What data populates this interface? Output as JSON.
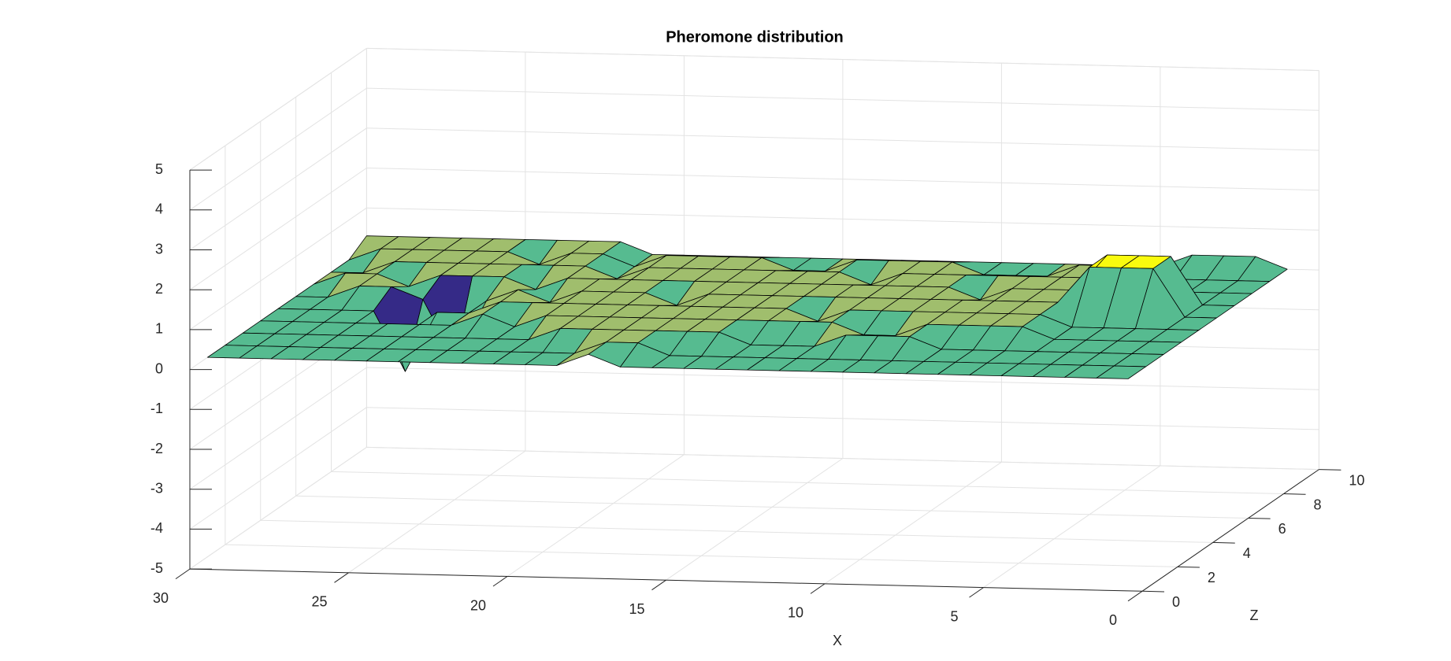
{
  "chart_data": {
    "type": "surface",
    "title": "Pheromone distribution",
    "xlabel": "X",
    "ylabel": "Z",
    "x": [
      1,
      2,
      3,
      4,
      5,
      6,
      7,
      8,
      9,
      10,
      11,
      12,
      13,
      14,
      15,
      16,
      17,
      18,
      19,
      20,
      21,
      22,
      23,
      24,
      25,
      26,
      27,
      28,
      29,
      30
    ],
    "y": [
      1,
      2,
      3,
      4,
      5,
      6,
      7,
      8,
      9,
      10
    ],
    "values": [
      [
        0,
        0,
        0,
        0,
        0,
        0,
        0,
        0,
        0,
        0,
        0,
        0,
        0,
        0,
        0,
        0,
        0,
        0.3,
        0,
        0,
        0,
        0,
        0,
        0,
        0,
        0,
        0,
        0,
        0,
        0
      ],
      [
        0,
        0,
        0,
        0,
        0,
        0,
        0,
        0,
        0,
        0,
        0,
        0,
        0,
        0,
        0,
        0,
        0.3,
        0.3,
        0,
        0,
        0,
        0,
        0,
        0,
        0,
        0,
        0,
        0,
        0,
        0
      ],
      [
        0,
        0,
        0,
        0,
        0,
        0,
        0,
        0,
        0.3,
        0.3,
        0.3,
        0,
        0,
        0,
        0.3,
        0.3,
        0.3,
        0.3,
        0.3,
        0.3,
        0,
        0,
        0,
        0,
        0,
        0,
        0,
        0,
        0,
        0
      ],
      [
        0,
        0,
        0,
        0,
        0,
        0.3,
        0.3,
        0.3,
        0.3,
        0,
        0,
        0.3,
        0.3,
        0.3,
        0.3,
        0.3,
        0.3,
        0.3,
        0.3,
        0.3,
        0.3,
        0,
        0.3,
        0,
        0,
        0,
        0,
        0,
        0,
        0
      ],
      [
        0,
        0,
        0,
        0,
        0,
        0.3,
        0.3,
        0.3,
        0.3,
        0.3,
        0.3,
        0.3,
        0,
        0.3,
        0.3,
        0.3,
        0.3,
        0.3,
        0.3,
        0.3,
        0.3,
        0.3,
        0.3,
        0,
        0,
        -1.5,
        0,
        0,
        0,
        0
      ],
      [
        0,
        0,
        1.2,
        1.2,
        1.2,
        0.3,
        0.3,
        0.3,
        0.3,
        0.3,
        0.3,
        0.3,
        0.3,
        0.3,
        0.3,
        0.3,
        0.3,
        0,
        0.3,
        0.3,
        0.3,
        0,
        0.3,
        0,
        -1.5,
        0,
        0.3,
        0.3,
        0,
        0
      ],
      [
        0,
        0,
        1.2,
        1.2,
        1.2,
        0.3,
        0.3,
        0.3,
        0,
        0.3,
        0.3,
        0.3,
        0.3,
        0.3,
        0.3,
        0.3,
        0.3,
        0.3,
        0.3,
        0.3,
        0.3,
        0.3,
        0,
        0.3,
        0.3,
        0.3,
        0,
        0.3,
        0.3,
        0
      ],
      [
        0,
        0,
        0,
        0,
        0,
        0.3,
        0.3,
        0.3,
        0.3,
        0.3,
        0.3,
        0.3,
        0,
        0.3,
        0.3,
        0.3,
        0.3,
        0.3,
        0.3,
        0.3,
        0,
        0.3,
        0.3,
        0.3,
        0.3,
        0.3,
        0.3,
        0.3,
        0,
        0
      ],
      [
        0,
        0,
        0,
        0,
        0,
        0.3,
        0.3,
        0,
        0,
        0,
        0.3,
        0.3,
        0.3,
        0.3,
        0,
        0,
        0.3,
        0.3,
        0.3,
        0.3,
        0,
        0.3,
        0.3,
        0,
        0.3,
        0.3,
        0.3,
        0.3,
        0.3,
        0
      ],
      [
        0,
        0.3,
        0.3,
        0.3,
        0,
        0,
        0,
        0,
        0,
        0,
        0,
        0,
        0,
        0,
        0,
        0,
        0,
        0,
        0,
        0,
        0,
        0.3,
        0.3,
        0.3,
        0.3,
        0.3,
        0.3,
        0.3,
        0.3,
        0.3
      ]
    ],
    "xlim": [
      0,
      30
    ],
    "xticks": [
      0,
      5,
      10,
      15,
      20,
      25,
      30
    ],
    "ylim": [
      0,
      10
    ],
    "yticks": [
      0,
      2,
      4,
      6,
      8,
      10
    ],
    "zlim": [
      -5,
      5
    ],
    "zticks": [
      -5,
      -4,
      -3,
      -2,
      -1,
      0,
      1,
      2,
      3,
      4,
      5
    ],
    "grid": true,
    "edgecolor": "#000000",
    "colormap": [
      "#352a87",
      "#0f5cdd",
      "#1481d6",
      "#06a4ca",
      "#2eb7a4",
      "#87bf77",
      "#d1bb59",
      "#fec832",
      "#f9fb0e"
    ]
  }
}
